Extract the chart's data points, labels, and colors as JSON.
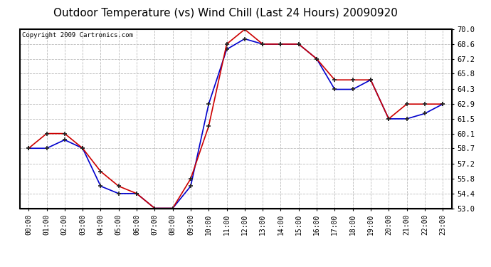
{
  "title": "Outdoor Temperature (vs) Wind Chill (Last 24 Hours) 20090920",
  "copyright": "Copyright 2009 Cartronics.com",
  "x_labels": [
    "00:00",
    "01:00",
    "02:00",
    "03:00",
    "04:00",
    "05:00",
    "06:00",
    "07:00",
    "08:00",
    "09:00",
    "10:00",
    "11:00",
    "12:00",
    "13:00",
    "14:00",
    "15:00",
    "16:00",
    "17:00",
    "18:00",
    "19:00",
    "20:00",
    "21:00",
    "22:00",
    "23:00"
  ],
  "temp_red": [
    58.7,
    60.1,
    60.1,
    58.7,
    56.5,
    55.1,
    54.4,
    53.0,
    53.0,
    55.8,
    60.8,
    68.6,
    70.0,
    68.6,
    68.6,
    68.6,
    67.2,
    65.2,
    65.2,
    65.2,
    61.5,
    62.9,
    62.9,
    62.9
  ],
  "temp_blue": [
    58.7,
    58.7,
    59.5,
    58.7,
    55.1,
    54.4,
    54.4,
    53.0,
    53.0,
    55.1,
    62.9,
    68.1,
    69.1,
    68.6,
    68.6,
    68.6,
    67.2,
    64.3,
    64.3,
    65.2,
    61.5,
    61.5,
    62.0,
    62.9
  ],
  "red_color": "#cc0000",
  "blue_color": "#0000cc",
  "bg_color": "#ffffff",
  "plot_bg": "#ffffff",
  "grid_color": "#bbbbbb",
  "ylim": [
    53.0,
    70.0
  ],
  "yticks": [
    53.0,
    54.4,
    55.8,
    57.2,
    58.7,
    60.1,
    61.5,
    62.9,
    64.3,
    65.8,
    67.2,
    68.6,
    70.0
  ],
  "title_fontsize": 11,
  "copyright_fontsize": 6.5,
  "tick_fontsize": 7,
  "ytick_fontsize": 7.5
}
